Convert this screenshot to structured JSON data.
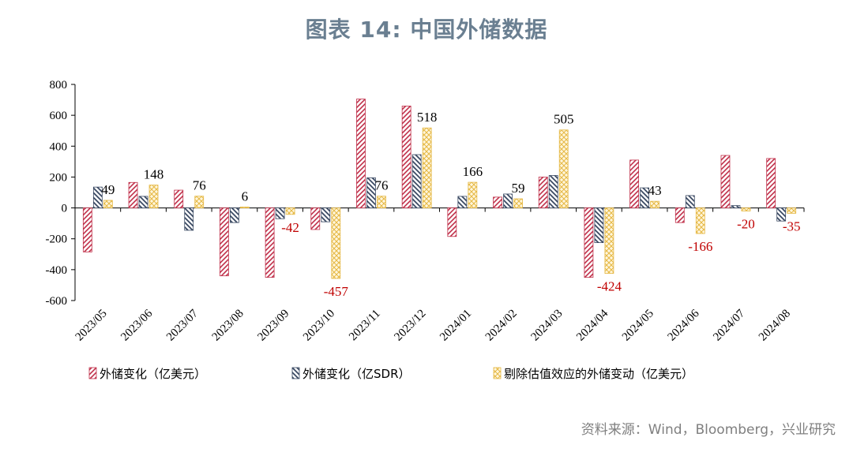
{
  "title": "图表 14: 中国外储数据",
  "source": "资料来源：Wind，Bloomberg，兴业研究",
  "chart_data": {
    "type": "bar",
    "categories": [
      "2023/05",
      "2023/06",
      "2023/07",
      "2023/08",
      "2023/09",
      "2023/10",
      "2023/11",
      "2023/12",
      "2024/01",
      "2024/02",
      "2024/03",
      "2024/04",
      "2024/05",
      "2024/06",
      "2024/07",
      "2024/08"
    ],
    "ylim": [
      -600,
      800
    ],
    "yticks": [
      800,
      600,
      400,
      200,
      0,
      -200,
      -400,
      -600
    ],
    "grid": false,
    "legend_position": "bottom",
    "series": [
      {
        "name": "外储变化（亿美元）",
        "color": "#c0304a",
        "pattern": "diag-right",
        "values": [
          -285,
          165,
          115,
          -440,
          -450,
          -140,
          705,
          660,
          -185,
          70,
          200,
          -450,
          310,
          -95,
          340,
          320
        ]
      },
      {
        "name": "外储变化（亿SDR）",
        "color": "#3b4a63",
        "pattern": "diag-left",
        "values": [
          135,
          75,
          -145,
          -95,
          -70,
          -90,
          195,
          345,
          75,
          90,
          210,
          -225,
          130,
          80,
          15,
          -85
        ]
      },
      {
        "name": "剔除估值效应的外储变动（亿美元）",
        "color": "#e5b844",
        "pattern": "cross",
        "values": [
          49,
          148,
          76,
          6,
          -42,
          -457,
          76,
          518,
          166,
          59,
          505,
          -424,
          43,
          -166,
          -20,
          -35
        ]
      }
    ],
    "data_labels": {
      "series_index": 2,
      "values": [
        "49",
        "148",
        "76",
        "6",
        "-42",
        "-457",
        "76",
        "518",
        "166",
        "59",
        "505",
        "-424",
        "43",
        "-166",
        "-20",
        "-35"
      ],
      "positive_color": "#000000",
      "negative_color": "#c00000"
    }
  }
}
